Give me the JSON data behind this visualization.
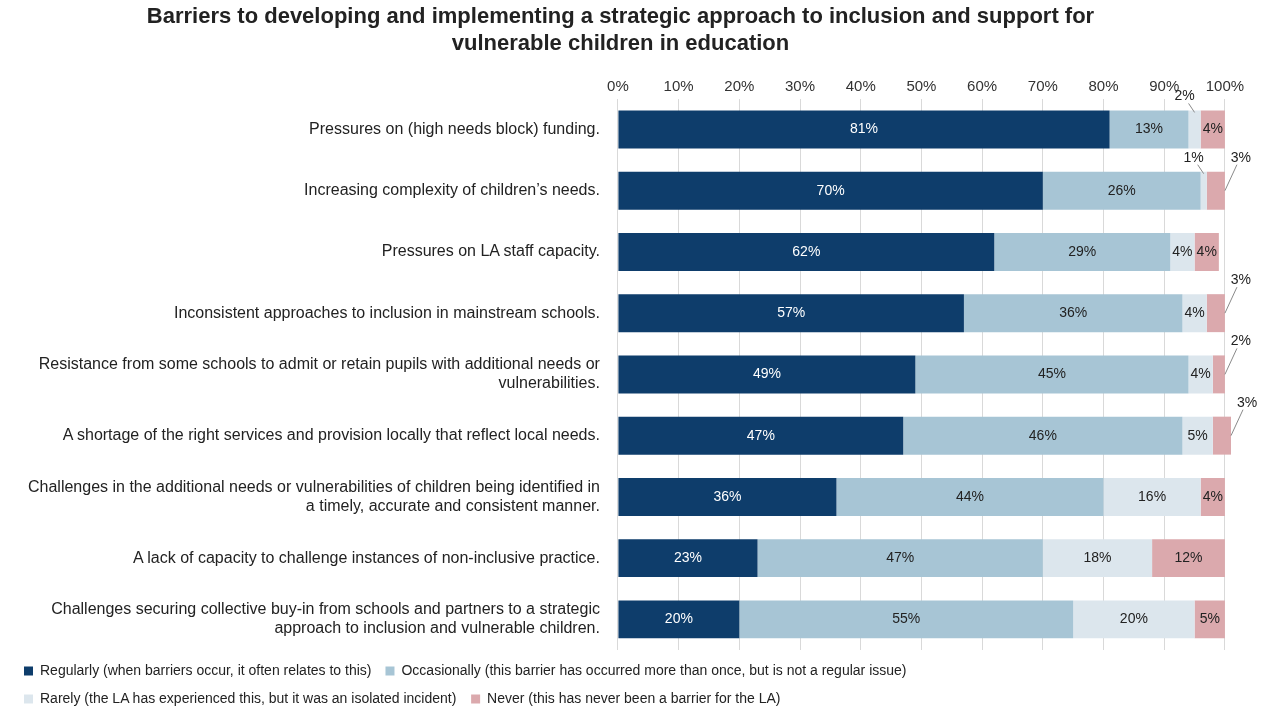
{
  "chart_data": {
    "type": "bar",
    "orientation": "horizontal",
    "stacked": true,
    "title": "Barriers to developing and implementing a strategic approach to inclusion and support for vulnerable children in education",
    "categories": [
      "Pressures on (high needs block) funding.",
      "Increasing complexity of children’s needs.",
      "Pressures on LA staff capacity.",
      "Inconsistent approaches to inclusion in mainstream schools.",
      "Resistance from some schools to admit or retain pupils with additional needs or vulnerabilities.",
      "A shortage of the right services and provision locally that reflect local needs.",
      "Challenges in the additional needs or vulnerabilities of children being identified in a timely, accurate and consistent manner.",
      "A lack of capacity to challenge instances of non-inclusive practice.",
      "Challenges securing collective buy-in from schools and partners to a strategic approach to inclusion and vulnerable children."
    ],
    "series": [
      {
        "name": "Regularly (when barriers occur, it often relates to this)",
        "color": "#0e3d6b",
        "values": [
          81,
          70,
          62,
          57,
          49,
          47,
          36,
          23,
          20
        ],
        "value_labels": [
          "81%",
          "70%",
          "62%",
          "57%",
          "49%",
          "47%",
          "36%",
          "23%",
          "20%"
        ]
      },
      {
        "name": "Occasionally (this barrier has occurred more than once, but is not a regular issue)",
        "color": "#a7c5d5",
        "values": [
          13,
          26,
          29,
          36,
          45,
          46,
          44,
          47,
          55
        ],
        "value_labels": [
          "13%",
          "26%",
          "29%",
          "36%",
          "45%",
          "46%",
          "44%",
          "47%",
          "55%"
        ]
      },
      {
        "name": "Rarely (the LA has experienced this, but it was an isolated incident)",
        "color": "#dce6ed",
        "values": [
          2,
          1,
          4,
          4,
          4,
          5,
          16,
          18,
          20
        ],
        "value_labels": [
          "2%",
          "1%",
          "4%",
          "4%",
          "4%",
          "5%",
          "16%",
          "18%",
          "20%"
        ]
      },
      {
        "name": "Never (this has never been a barrier for the LA)",
        "color": "#dba9ad",
        "values": [
          4,
          3,
          4,
          3,
          2,
          3,
          4,
          12,
          5
        ],
        "value_labels": [
          "4%",
          "3%",
          "4%",
          "3%",
          "2%",
          "3%",
          "4%",
          "12%",
          "5%"
        ]
      }
    ],
    "xlim": [
      0,
      101
    ],
    "xticks": [
      {
        "value": 0,
        "label": "0%"
      },
      {
        "value": 10,
        "label": "10%"
      },
      {
        "value": 20,
        "label": "20%"
      },
      {
        "value": 30,
        "label": "30%"
      },
      {
        "value": 40,
        "label": "40%"
      },
      {
        "value": 50,
        "label": "50%"
      },
      {
        "value": 60,
        "label": "60%"
      },
      {
        "value": 70,
        "label": "70%"
      },
      {
        "value": 80,
        "label": "80%"
      },
      {
        "value": 90,
        "label": "90%"
      },
      {
        "value": 100,
        "label": "100%"
      }
    ],
    "grid": "x",
    "legend": "bottom"
  }
}
